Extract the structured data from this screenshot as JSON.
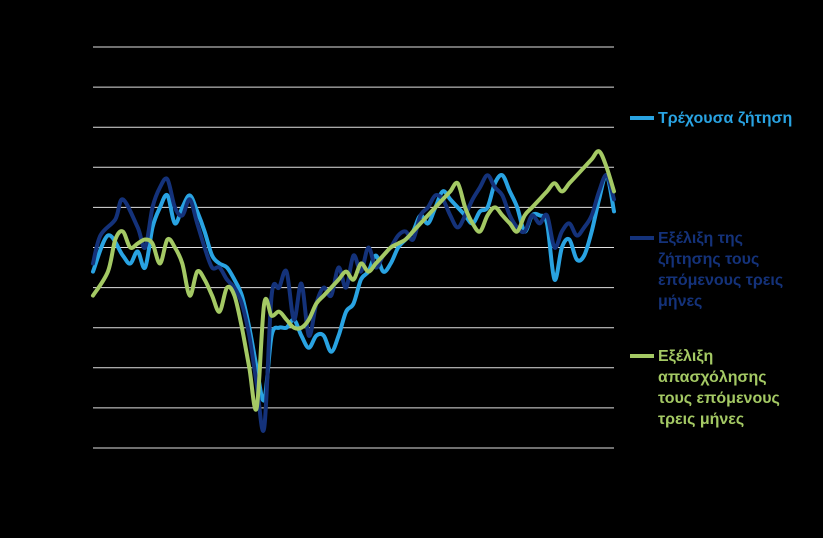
{
  "chart_data": {
    "type": "line",
    "title": "",
    "xlabel": "",
    "ylabel": "",
    "ylim": [
      -50,
      50
    ],
    "grid": true,
    "grid_values": [
      -50,
      -40,
      -30,
      -20,
      -10,
      0,
      10,
      20,
      30,
      40,
      50
    ],
    "legend_position": "right",
    "background": "#000000",
    "gridline_color": "#e0e0e0",
    "series": [
      {
        "name": "Τρέχουσα ζήτηση",
        "color": "#29a3e2",
        "points": [
          [
            0,
            -6
          ],
          [
            2,
            3
          ],
          [
            4,
            -2
          ],
          [
            5,
            -4
          ],
          [
            6,
            -1
          ],
          [
            7,
            -5
          ],
          [
            8,
            5
          ],
          [
            9,
            10
          ],
          [
            10,
            13
          ],
          [
            11,
            6
          ],
          [
            12,
            10
          ],
          [
            13,
            13
          ],
          [
            14,
            9
          ],
          [
            15,
            4
          ],
          [
            16,
            -2
          ],
          [
            17,
            -4
          ],
          [
            18,
            -5
          ],
          [
            19,
            -8
          ],
          [
            20,
            -12
          ],
          [
            21,
            -20
          ],
          [
            22,
            -30
          ],
          [
            23,
            -38
          ],
          [
            24,
            -22
          ],
          [
            25,
            -20
          ],
          [
            26,
            -20
          ],
          [
            27,
            -18
          ],
          [
            28,
            -22
          ],
          [
            29,
            -25
          ],
          [
            30,
            -22
          ],
          [
            31,
            -22
          ],
          [
            32,
            -26
          ],
          [
            33,
            -22
          ],
          [
            34,
            -16
          ],
          [
            35,
            -14
          ],
          [
            36,
            -8
          ],
          [
            37,
            -6
          ],
          [
            38,
            -2
          ],
          [
            39,
            -6
          ],
          [
            40,
            -4
          ],
          [
            41,
            0
          ],
          [
            42,
            2
          ],
          [
            43,
            4
          ],
          [
            44,
            8
          ],
          [
            45,
            6
          ],
          [
            46,
            10
          ],
          [
            47,
            14
          ],
          [
            48,
            12
          ],
          [
            49,
            10
          ],
          [
            50,
            8
          ],
          [
            51,
            6
          ],
          [
            52,
            9
          ],
          [
            53,
            10
          ],
          [
            54,
            16
          ],
          [
            55,
            18
          ],
          [
            56,
            14
          ],
          [
            57,
            10
          ],
          [
            58,
            4
          ],
          [
            59,
            8
          ],
          [
            60,
            8
          ],
          [
            61,
            6
          ],
          [
            62,
            -8
          ],
          [
            63,
            0
          ],
          [
            64,
            2
          ],
          [
            65,
            -3
          ],
          [
            66,
            -2
          ],
          [
            67,
            4
          ],
          [
            68,
            12
          ],
          [
            69,
            18
          ],
          [
            70,
            9
          ]
        ]
      },
      {
        "name": "Εξέλιξη της\nζήτησης τους\nεπόμενους τρεις\nμήνες",
        "color": "#14327a",
        "points": [
          [
            0,
            -4
          ],
          [
            1,
            3
          ],
          [
            3,
            7
          ],
          [
            4,
            12
          ],
          [
            6,
            5
          ],
          [
            7,
            0
          ],
          [
            8,
            10
          ],
          [
            9,
            15
          ],
          [
            10,
            17
          ],
          [
            11,
            10
          ],
          [
            12,
            8
          ],
          [
            13,
            12
          ],
          [
            14,
            6
          ],
          [
            15,
            0
          ],
          [
            16,
            -5
          ],
          [
            17,
            -5
          ],
          [
            18,
            -8
          ],
          [
            19,
            -10
          ],
          [
            20,
            -14
          ],
          [
            21,
            -22
          ],
          [
            22,
            -34
          ],
          [
            23,
            -45
          ],
          [
            24,
            -12
          ],
          [
            25,
            -10
          ],
          [
            26,
            -6
          ],
          [
            27,
            -18
          ],
          [
            28,
            -9
          ],
          [
            29,
            -22
          ],
          [
            30,
            -14
          ],
          [
            31,
            -10
          ],
          [
            32,
            -12
          ],
          [
            33,
            -5
          ],
          [
            34,
            -10
          ],
          [
            35,
            -2
          ],
          [
            36,
            -6
          ],
          [
            37,
            0
          ],
          [
            38,
            -5
          ],
          [
            39,
            -2
          ],
          [
            40,
            0
          ],
          [
            41,
            3
          ],
          [
            42,
            4
          ],
          [
            43,
            2
          ],
          [
            44,
            8
          ],
          [
            45,
            10
          ],
          [
            46,
            13
          ],
          [
            47,
            12
          ],
          [
            48,
            8
          ],
          [
            49,
            5
          ],
          [
            50,
            8
          ],
          [
            51,
            12
          ],
          [
            52,
            15
          ],
          [
            53,
            18
          ],
          [
            54,
            15
          ],
          [
            55,
            13
          ],
          [
            56,
            8
          ],
          [
            57,
            5
          ],
          [
            58,
            4
          ],
          [
            59,
            8
          ],
          [
            60,
            6
          ],
          [
            61,
            8
          ],
          [
            62,
            0
          ],
          [
            63,
            4
          ],
          [
            64,
            6
          ],
          [
            65,
            3
          ],
          [
            66,
            5
          ],
          [
            67,
            8
          ],
          [
            68,
            14
          ],
          [
            69,
            18
          ],
          [
            70,
            12
          ]
        ]
      },
      {
        "name": "Εξέλιξη\nαπασχόλησης\nτους επόμενους\nτρεις μήνες",
        "color": "#a4c964",
        "points": [
          [
            0,
            -12
          ],
          [
            2,
            -6
          ],
          [
            3,
            2
          ],
          [
            4,
            4
          ],
          [
            5,
            0
          ],
          [
            6,
            1
          ],
          [
            7,
            2
          ],
          [
            8,
            1
          ],
          [
            9,
            -4
          ],
          [
            10,
            2
          ],
          [
            11,
            0
          ],
          [
            12,
            -4
          ],
          [
            13,
            -12
          ],
          [
            14,
            -6
          ],
          [
            15,
            -8
          ],
          [
            16,
            -12
          ],
          [
            17,
            -16
          ],
          [
            18,
            -10
          ],
          [
            19,
            -12
          ],
          [
            20,
            -20
          ],
          [
            21,
            -30
          ],
          [
            22,
            -40
          ],
          [
            23,
            -14
          ],
          [
            24,
            -17
          ],
          [
            25,
            -16
          ],
          [
            26,
            -18
          ],
          [
            27,
            -20
          ],
          [
            28,
            -20
          ],
          [
            29,
            -18
          ],
          [
            30,
            -14
          ],
          [
            31,
            -12
          ],
          [
            32,
            -10
          ],
          [
            33,
            -8
          ],
          [
            34,
            -6
          ],
          [
            35,
            -8
          ],
          [
            36,
            -4
          ],
          [
            37,
            -6
          ],
          [
            38,
            -4
          ],
          [
            39,
            -2
          ],
          [
            40,
            0
          ],
          [
            41,
            1
          ],
          [
            42,
            2
          ],
          [
            43,
            4
          ],
          [
            44,
            6
          ],
          [
            45,
            8
          ],
          [
            46,
            10
          ],
          [
            47,
            12
          ],
          [
            48,
            14
          ],
          [
            49,
            16
          ],
          [
            50,
            10
          ],
          [
            51,
            6
          ],
          [
            52,
            4
          ],
          [
            53,
            8
          ],
          [
            54,
            10
          ],
          [
            55,
            8
          ],
          [
            56,
            6
          ],
          [
            57,
            4
          ],
          [
            58,
            8
          ],
          [
            59,
            10
          ],
          [
            60,
            12
          ],
          [
            61,
            14
          ],
          [
            62,
            16
          ],
          [
            63,
            14
          ],
          [
            64,
            16
          ],
          [
            65,
            18
          ],
          [
            66,
            20
          ],
          [
            67,
            22
          ],
          [
            68,
            24
          ],
          [
            69,
            20
          ],
          [
            70,
            14
          ]
        ]
      }
    ]
  }
}
